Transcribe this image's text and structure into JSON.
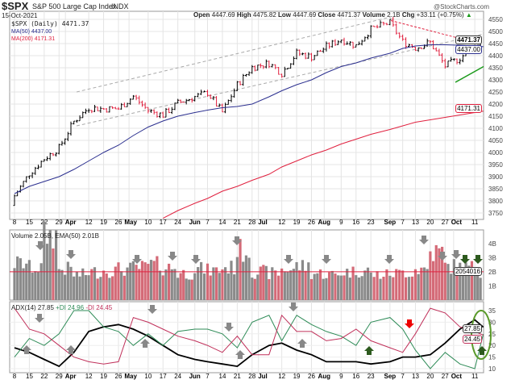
{
  "header": {
    "symbol": "$SPX",
    "name": "S&P 500 Large Cap Index",
    "exchange": "INDX",
    "date": "15-Oct-2021",
    "brand": "@StockCharts.com",
    "open_label": "Open",
    "open": "4447.69",
    "high_label": "High",
    "high": "4475.82",
    "low_label": "Low",
    "low": "4447.69",
    "close_label": "Close",
    "close": "4471.37",
    "volume_label": "Volume",
    "volume": "2.1B",
    "chg_label": "Chg",
    "chg": "+33.11 (+0.75%)"
  },
  "legend": {
    "price": "$SPX (Daily) 4471.37",
    "ma50": "MA(50) 4437.00",
    "ma200": "MA(200) 4171.31",
    "volume": "Volume 2.05B, EMA(50) 2.01B",
    "adx": "ADX(14) 27.85",
    "pdi": "+DI 24.96",
    "mdi": "-DI 24.45"
  },
  "tags": {
    "price": "4471.37",
    "ma50": "4437.00",
    "ma200": "4171.31",
    "volume": "2054016",
    "adx": "27.85",
    "di": "24.45"
  },
  "colors": {
    "up": "#000000",
    "down": "#e0213f",
    "ma50": "#2b2f8f",
    "ma200": "#e0213f",
    "vol_up": "#8a8a8a",
    "vol_down": "#d46a77",
    "pdi": "#2e8b57",
    "mdi": "#c0305a",
    "adx": "#000000",
    "trend_up": "#1a9a1a"
  },
  "chart_data": [
    {
      "type": "ohlc",
      "title": "$SPX (Daily)",
      "ylim": [
        3700,
        4560
      ],
      "yticks": [
        3750,
        3800,
        3850,
        3900,
        3950,
        4000,
        4050,
        4100,
        4150,
        4200,
        4250,
        4300,
        4350,
        4400,
        4450,
        4500,
        4550
      ],
      "dates": [
        "2021-03-08",
        "2021-03-15",
        "2021-03-22",
        "2021-03-29",
        "2021-04-05",
        "2021-04-12",
        "2021-04-19",
        "2021-04-26",
        "2021-05-03",
        "2021-05-10",
        "2021-05-17",
        "2021-05-24",
        "2021-06-01",
        "2021-06-07",
        "2021-06-14",
        "2021-06-21",
        "2021-06-28",
        "2021-07-06",
        "2021-07-12",
        "2021-07-19",
        "2021-07-26",
        "2021-08-02",
        "2021-08-09",
        "2021-08-16",
        "2021-08-23",
        "2021-09-01",
        "2021-09-07",
        "2021-09-13",
        "2021-09-20",
        "2021-09-27",
        "2021-10-04",
        "2021-10-11",
        "2021-10-15"
      ],
      "close": [
        3821,
        3913,
        3974,
        4019,
        4128,
        4185,
        4180,
        4181,
        4232,
        4173,
        4155,
        4204,
        4230,
        4247,
        4166,
        4280,
        4352,
        4369,
        4327,
        4411,
        4395,
        4437,
        4468,
        4441,
        4509,
        4537,
        4458,
        4433,
        4455,
        4357,
        4391,
        4438,
        4471
      ],
      "ma50": [
        3830,
        3860,
        3880,
        3900,
        3930,
        3965,
        4000,
        4030,
        4070,
        4105,
        4130,
        4150,
        4165,
        4175,
        4185,
        4190,
        4200,
        4230,
        4255,
        4280,
        4300,
        4330,
        4355,
        4370,
        4390,
        4410,
        4430,
        4440,
        4445,
        4445,
        4443,
        4440,
        4437
      ],
      "ma200": [
        null,
        null,
        null,
        null,
        null,
        null,
        null,
        null,
        null,
        null,
        3728,
        3760,
        3790,
        3810,
        3840,
        3860,
        3885,
        3910,
        3940,
        3965,
        3990,
        4010,
        4035,
        4055,
        4075,
        4095,
        4110,
        4125,
        4135,
        4145,
        4155,
        4165,
        4171
      ]
    },
    {
      "type": "bar",
      "title": "Volume",
      "unit": "B",
      "yticks": [
        "1B",
        "2B",
        "3B",
        "4B"
      ],
      "ema50": 2.01,
      "values": [
        2.6,
        2.3,
        4.6,
        2.2,
        1.8,
        2.0,
        2.1,
        2.2,
        2.3,
        2.5,
        2.3,
        1.9,
        2.2,
        2.1,
        2.3,
        3.5,
        2.0,
        1.9,
        2.2,
        2.4,
        1.9,
        1.8,
        2.0,
        2.1,
        1.8,
        1.9,
        2.0,
        2.2,
        3.4,
        2.4,
        2.3,
        2.1,
        2.05
      ]
    },
    {
      "type": "line",
      "title": "ADX(14)",
      "ylim": [
        8,
        38
      ],
      "yticks": [
        10,
        15,
        20,
        25,
        30,
        35
      ],
      "series": [
        {
          "name": "ADX(14)",
          "values": [
            19,
            17,
            14,
            11,
            17,
            26,
            28,
            29,
            27,
            24,
            20,
            16,
            14,
            13,
            12,
            11,
            16,
            20,
            21,
            18,
            16,
            13,
            13,
            13,
            12,
            13,
            15,
            15,
            16,
            21,
            27,
            31,
            27.85
          ]
        },
        {
          "name": "+DI",
          "values": [
            15,
            23,
            20,
            25,
            35,
            35,
            28,
            26,
            20,
            25,
            20,
            26,
            27,
            27,
            25,
            19,
            30,
            33,
            22,
            33,
            29,
            26,
            24,
            20,
            30,
            32,
            27,
            18,
            10,
            17,
            12,
            10,
            24.96
          ]
        },
        {
          "name": "-DI",
          "values": [
            36,
            27,
            25,
            20,
            15,
            13,
            12,
            13,
            32,
            30,
            27,
            24,
            22,
            20,
            17,
            24,
            16,
            16,
            33,
            26,
            26,
            22,
            23,
            27,
            22,
            19,
            17,
            25,
            36,
            34,
            28,
            26,
            24.45
          ]
        }
      ]
    }
  ],
  "x_labels": [
    {
      "t": "8"
    },
    {
      "t": "15"
    },
    {
      "t": "22"
    },
    {
      "t": "29"
    },
    {
      "t": "Apr",
      "b": 1
    },
    {
      "t": "12"
    },
    {
      "t": "19"
    },
    {
      "t": "26"
    },
    {
      "t": "May",
      "b": 1
    },
    {
      "t": "10"
    },
    {
      "t": "17"
    },
    {
      "t": "24"
    },
    {
      "t": "Jun",
      "b": 1
    },
    {
      "t": "7"
    },
    {
      "t": "14"
    },
    {
      "t": "21"
    },
    {
      "t": "28"
    },
    {
      "t": "Jul",
      "b": 1
    },
    {
      "t": "12"
    },
    {
      "t": "19"
    },
    {
      "t": "26"
    },
    {
      "t": "Aug",
      "b": 1
    },
    {
      "t": "9"
    },
    {
      "t": "16"
    },
    {
      "t": "23"
    },
    {
      "t": "Sep",
      "b": 1
    },
    {
      "t": "7"
    },
    {
      "t": "13"
    },
    {
      "t": "20"
    },
    {
      "t": "27"
    },
    {
      "t": "Oct",
      "b": 1
    },
    {
      "t": "11"
    }
  ],
  "x_label_dates": [
    "2021-03-08",
    "2021-03-15",
    "2021-03-22",
    "2021-03-29",
    "2021-04-01",
    "2021-04-12",
    "2021-04-19",
    "2021-04-26",
    "2021-05-01",
    "2021-05-10",
    "2021-05-17",
    "2021-05-24",
    "2021-06-01",
    "2021-06-07",
    "2021-06-14",
    "2021-06-21",
    "2021-06-28",
    "2021-07-01",
    "2021-07-12",
    "2021-07-19",
    "2021-07-26",
    "2021-08-01",
    "2021-08-09",
    "2021-08-16",
    "2021-08-23",
    "2021-09-01",
    "2021-09-07",
    "2021-09-13",
    "2021-09-20",
    "2021-09-27",
    "2021-10-01",
    "2021-10-11"
  ]
}
